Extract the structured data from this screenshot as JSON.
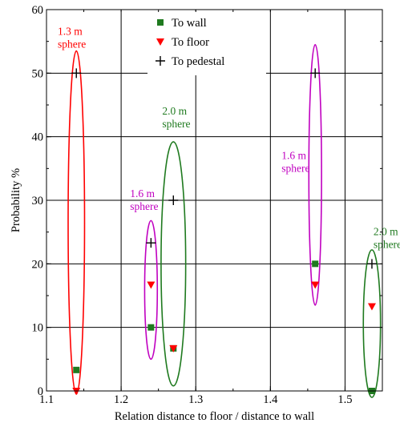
{
  "chart_data": {
    "type": "scatter",
    "title": "",
    "xlabel": "Relation distance to floor / distance to wall",
    "ylabel": "Probability %",
    "xlim": [
      1.1,
      1.55
    ],
    "ylim": [
      0,
      60
    ],
    "xticks": [
      1.1,
      1.2,
      1.3,
      1.4,
      1.5
    ],
    "yticks": [
      0,
      10,
      20,
      30,
      40,
      50,
      60
    ],
    "xtick_labels": [
      "1.1",
      "1.2",
      "1.3",
      "1.4",
      "1.5"
    ],
    "ytick_labels": [
      "0",
      "10",
      "20",
      "30",
      "40",
      "50",
      "60"
    ],
    "grid": true,
    "legend_position": "top-center",
    "series": [
      {
        "name": "To wall",
        "marker": "square",
        "color": "#1f7a1f",
        "points": [
          {
            "x": 1.14,
            "y": 3.3
          },
          {
            "x": 1.24,
            "y": 10
          },
          {
            "x": 1.27,
            "y": 6.7
          },
          {
            "x": 1.46,
            "y": 20
          },
          {
            "x": 1.536,
            "y": 0
          }
        ]
      },
      {
        "name": "To floor",
        "marker": "triangle-down",
        "color": "#ff0000",
        "points": [
          {
            "x": 1.14,
            "y": 0
          },
          {
            "x": 1.24,
            "y": 16.7
          },
          {
            "x": 1.27,
            "y": 6.7
          },
          {
            "x": 1.46,
            "y": 16.7
          },
          {
            "x": 1.536,
            "y": 13.3
          }
        ]
      },
      {
        "name": "To pedestal",
        "marker": "plus",
        "color": "#000000",
        "points": [
          {
            "x": 1.14,
            "y": 50
          },
          {
            "x": 1.24,
            "y": 23.3
          },
          {
            "x": 1.27,
            "y": 30
          },
          {
            "x": 1.46,
            "y": 50
          },
          {
            "x": 1.536,
            "y": 20
          }
        ]
      }
    ],
    "groups": [
      {
        "label_line1": "1.3 m",
        "label_line2": "sphere",
        "color": "#ff0000",
        "cx": 1.14,
        "cy": 26.5,
        "rx": 0.011,
        "ry": 27,
        "label_x": 1.115,
        "label_y": 56
      },
      {
        "label_line1": "1.6 m",
        "label_line2": "sphere",
        "color": "#c000c0",
        "cx": 1.24,
        "cy": 15.9,
        "rx": 0.0085,
        "ry": 10.9,
        "label_x": 1.212,
        "label_y": 30.5
      },
      {
        "label_line1": "2.0 m",
        "label_line2": "sphere",
        "color": "#1f7a1f",
        "cx": 1.27,
        "cy": 20,
        "rx": 0.0165,
        "ry": 19.2,
        "label_x": 1.255,
        "label_y": 43.5
      },
      {
        "label_line1": "1.6 m",
        "label_line2": "sphere",
        "color": "#c000c0",
        "cx": 1.46,
        "cy": 34,
        "rx": 0.0085,
        "ry": 20.5,
        "label_x": 1.415,
        "label_y": 36.5
      },
      {
        "label_line1": "2.0 m",
        "label_line2": "sphere",
        "color": "#1f7a1f",
        "cx": 1.536,
        "cy": 10.6,
        "rx": 0.0115,
        "ry": 11.6,
        "label_x": 1.538,
        "label_y": 24.5
      }
    ]
  }
}
